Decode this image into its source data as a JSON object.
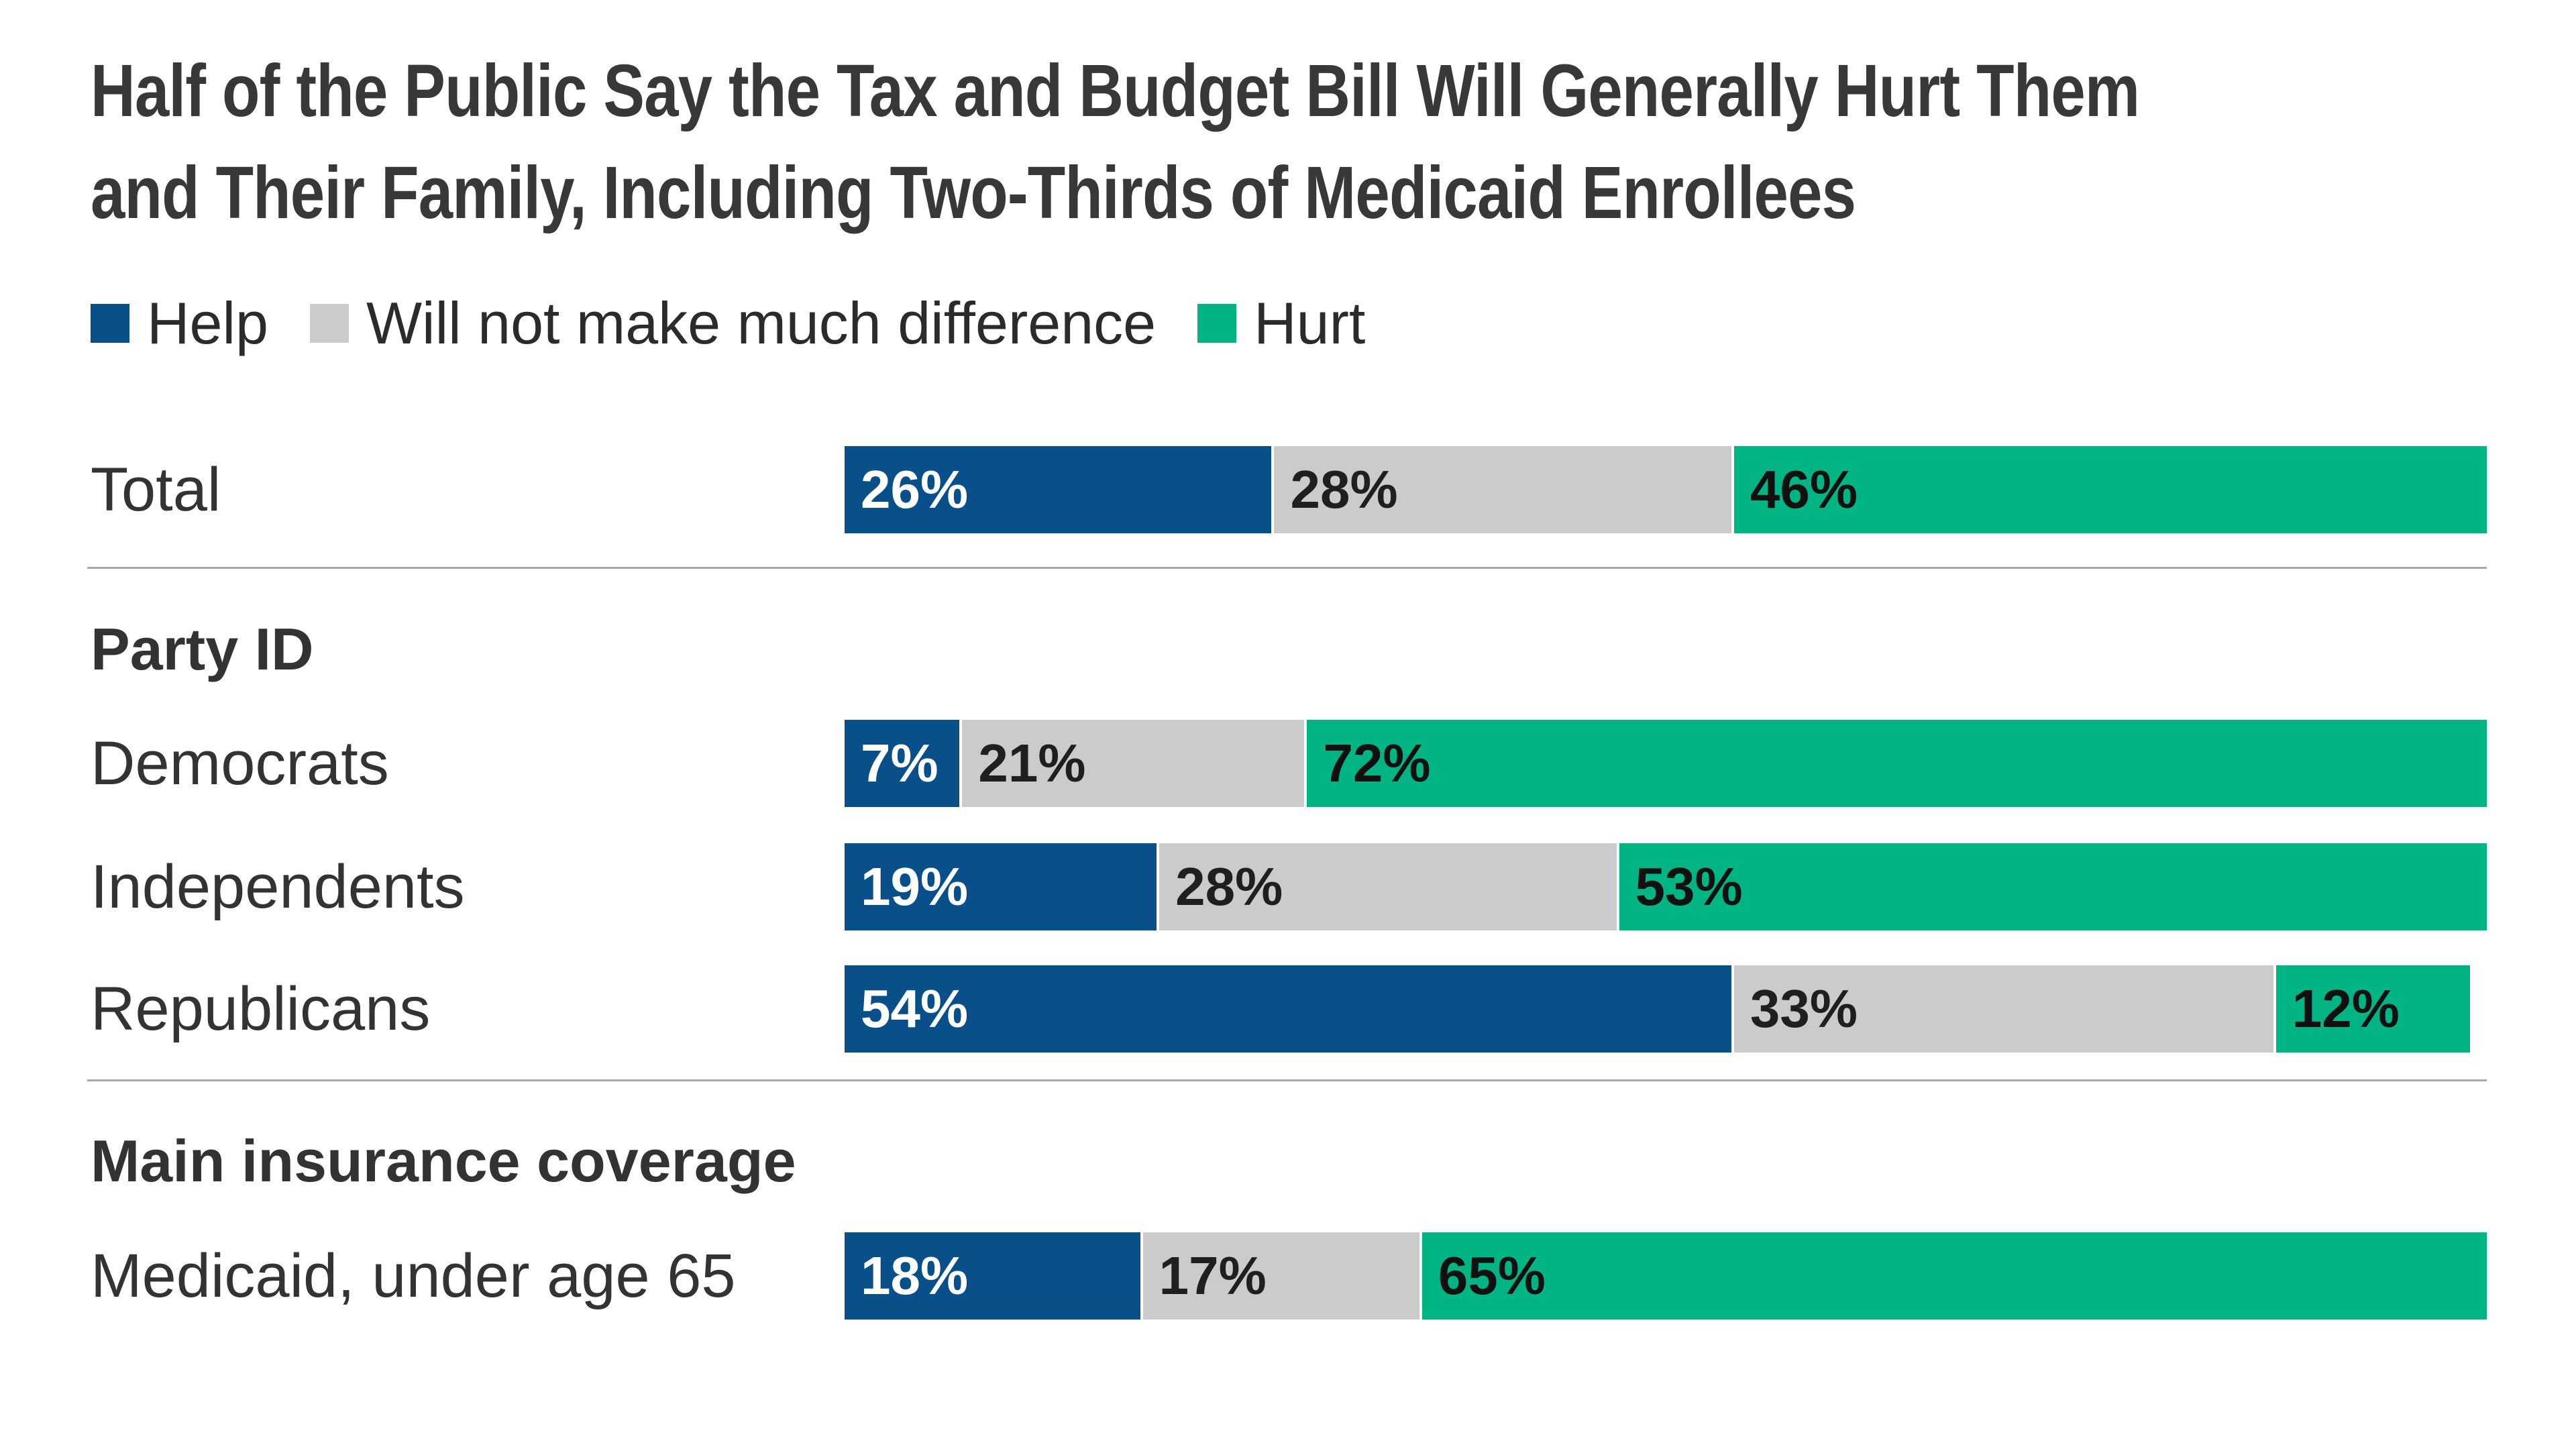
{
  "title": {
    "line1": "Half of the Public Say the Tax and Budget Bill Will Generally Hurt Them",
    "line2": "and Their Family, Including Two-Thirds of Medicaid Enrollees"
  },
  "legend": {
    "items": [
      {
        "label": "Help",
        "color": "#09508a"
      },
      {
        "label": "Will not make much difference",
        "color": "#cbcbcb"
      },
      {
        "label": "Hurt",
        "color": "#00b484"
      }
    ]
  },
  "sections": {
    "party": "Party ID",
    "insurance": "Main insurance coverage"
  },
  "rows": [
    {
      "label": "Total",
      "help": 26,
      "neutral": 28,
      "hurt": 46,
      "help_label": "26%",
      "neutral_label": "28%",
      "hurt_label": "46%"
    },
    {
      "label": "Democrats",
      "help": 7,
      "neutral": 21,
      "hurt": 72,
      "help_label": "7%",
      "neutral_label": "21%",
      "hurt_label": "72%"
    },
    {
      "label": "Independents",
      "help": 19,
      "neutral": 28,
      "hurt": 53,
      "help_label": "19%",
      "neutral_label": "28%",
      "hurt_label": "53%"
    },
    {
      "label": "Republicans",
      "help": 54,
      "neutral": 33,
      "hurt": 12,
      "help_label": "54%",
      "neutral_label": "33%",
      "hurt_label": "12%"
    },
    {
      "label": "Medicaid, under age 65",
      "help": 18,
      "neutral": 17,
      "hurt": 65,
      "help_label": "18%",
      "neutral_label": "17%",
      "hurt_label": "65%"
    }
  ],
  "chart_data": {
    "type": "bar",
    "orientation": "horizontal_stacked",
    "title": "Half of the Public Say the Tax and Budget Bill Will Generally Hurt Them and Their Family, Including Two-Thirds of Medicaid Enrollees",
    "categories": [
      "Total",
      "Democrats",
      "Independents",
      "Republicans",
      "Medicaid, under age 65"
    ],
    "category_groups": [
      {
        "header": "Party ID",
        "categories": [
          "Democrats",
          "Independents",
          "Republicans"
        ]
      },
      {
        "header": "Main insurance coverage",
        "categories": [
          "Medicaid, under age 65"
        ]
      }
    ],
    "series": [
      {
        "name": "Help",
        "color": "#09508a",
        "values": [
          26,
          7,
          19,
          54,
          18
        ]
      },
      {
        "name": "Will not make much difference",
        "color": "#cbcbcb",
        "values": [
          28,
          21,
          28,
          33,
          17
        ]
      },
      {
        "name": "Hurt",
        "color": "#00b484",
        "values": [
          46,
          72,
          53,
          12,
          65
        ]
      }
    ],
    "unit": "%",
    "xlim": [
      0,
      100
    ],
    "data_labels": true,
    "legend_position": "top-left",
    "grid": false,
    "background": "#ffffff"
  }
}
